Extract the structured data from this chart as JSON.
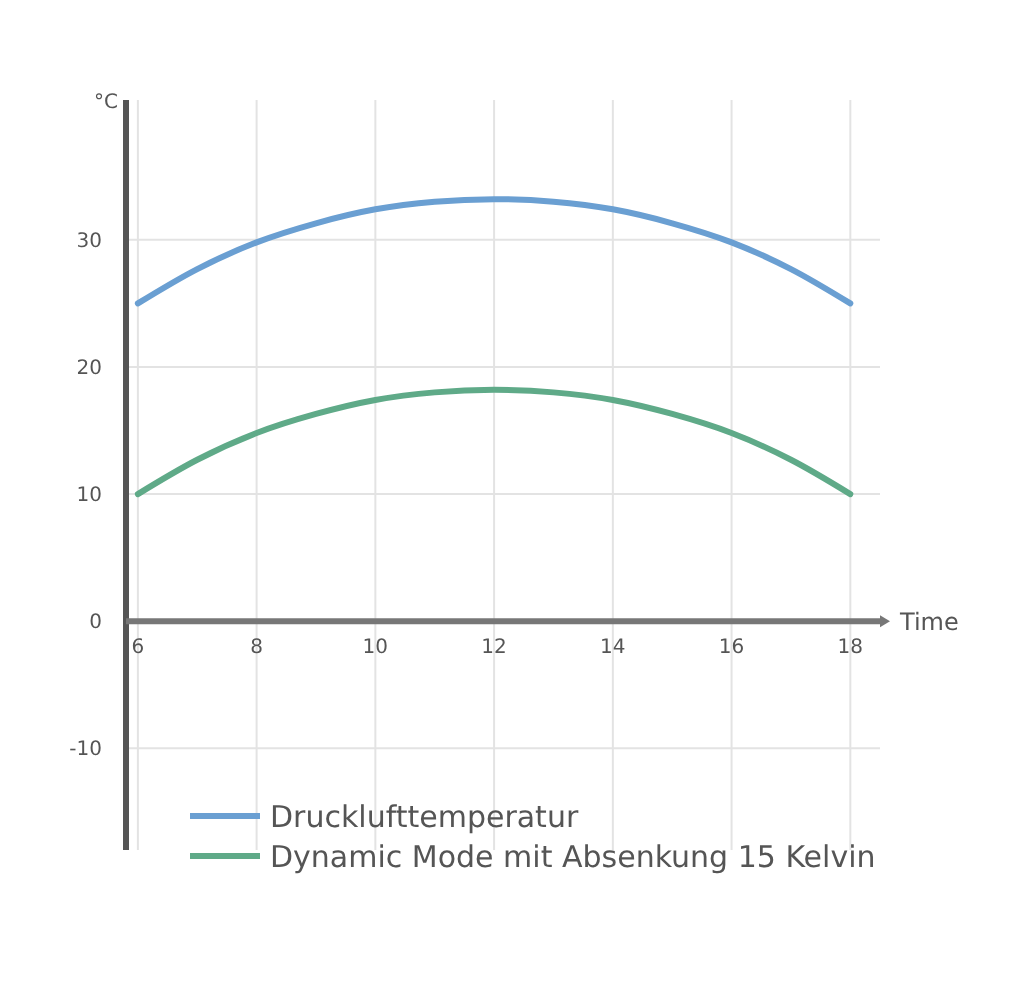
{
  "chart_data": {
    "type": "line",
    "xlabel": "Time",
    "ylabel": "°C",
    "x": [
      6,
      7,
      8,
      9,
      10,
      11,
      12,
      13,
      14,
      15,
      16,
      17,
      18
    ],
    "series": [
      {
        "name": "Drucklufttemperatur",
        "color": "#6a9fd2",
        "values": [
          25,
          27.7,
          29.8,
          31.3,
          32.4,
          33,
          33.2,
          33,
          32.4,
          31.3,
          29.8,
          27.7,
          25
        ]
      },
      {
        "name": "Dynamic Mode mit Absenkung 15 Kelvin",
        "color": "#5faa88",
        "values": [
          10,
          12.7,
          14.8,
          16.3,
          17.4,
          18,
          18.2,
          18,
          17.4,
          16.3,
          14.8,
          12.7,
          10
        ]
      }
    ],
    "xlim": [
      5.8,
      18.5
    ],
    "ylim": [
      -18,
      41
    ],
    "xticks": [
      6,
      8,
      10,
      12,
      14,
      16,
      18
    ],
    "yticks": [
      -10,
      0,
      10,
      20,
      30
    ],
    "grid": true,
    "legend": "bottom",
    "line_style": "solid",
    "marker": "none"
  }
}
